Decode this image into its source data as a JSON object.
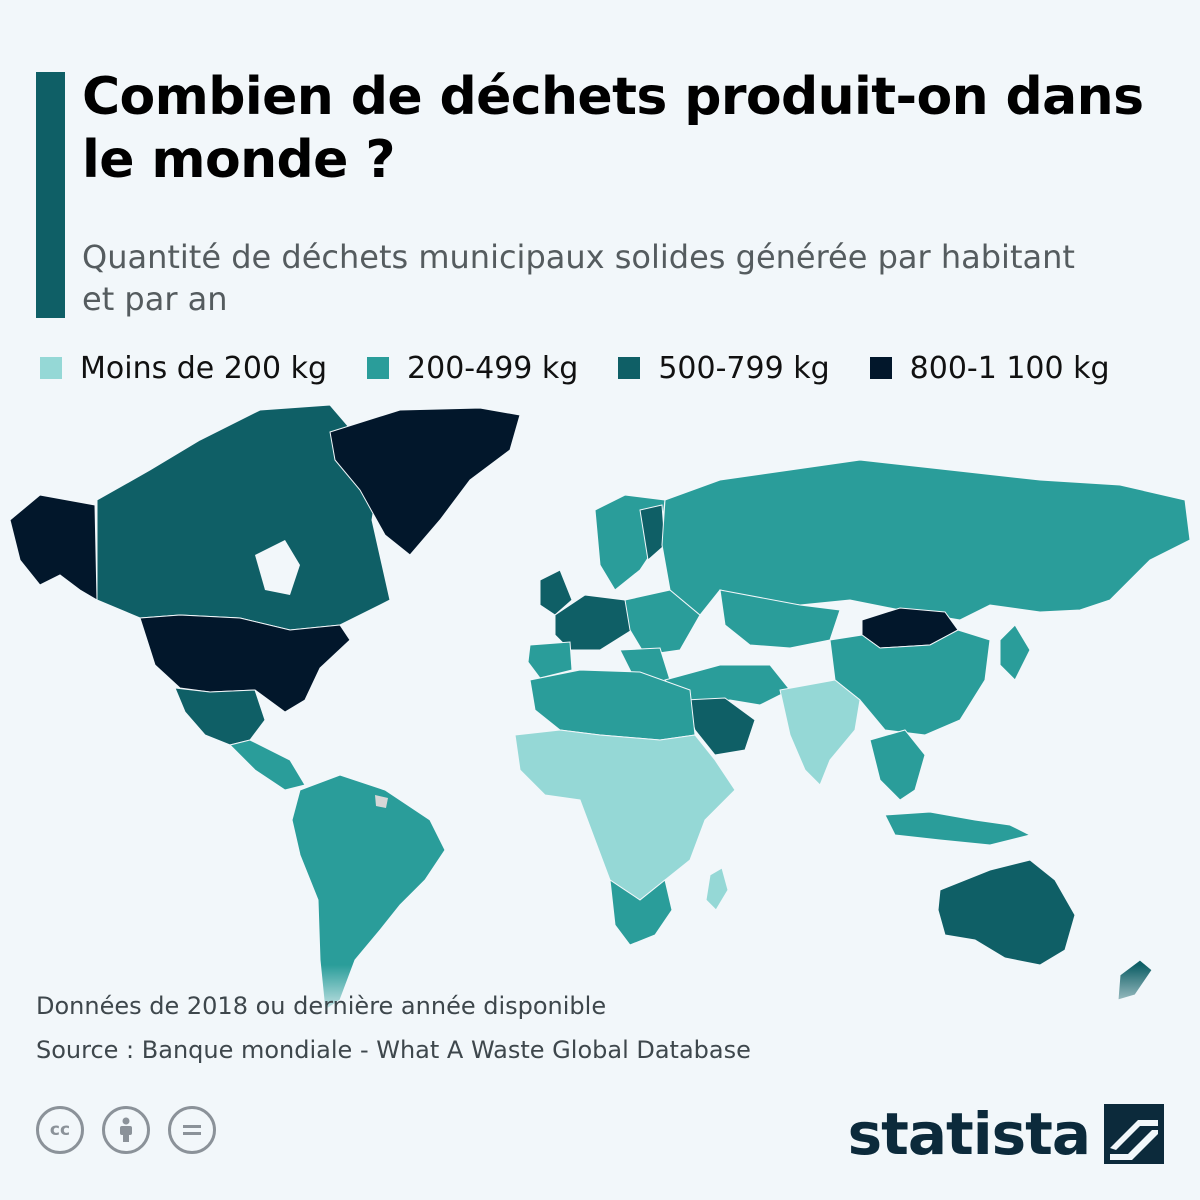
{
  "title": "Combien de déchets produit-on dans le monde ?",
  "subtitle": "Quantité de déchets municipaux solides générée par habitant et par an",
  "legend": [
    {
      "label": "Moins de 200 kg",
      "color": "#95d8d6"
    },
    {
      "label": "200-499 kg",
      "color": "#2a9d9a"
    },
    {
      "label": "500-799 kg",
      "color": "#0f5f66"
    },
    {
      "label": "800-1 100 kg",
      "color": "#02172b"
    }
  ],
  "note": "Données de 2018 ou dernière année disponible",
  "source": "Source : Banque mondiale - What A Waste Global Database",
  "brand": "statista",
  "license_icons": [
    "cc-icon",
    "attribution-icon",
    "no-derivatives-icon"
  ],
  "map": {
    "regions": [
      {
        "name": "Alaska",
        "class": "800-1 100 kg"
      },
      {
        "name": "Canada",
        "class": "500-799 kg"
      },
      {
        "name": "États-Unis",
        "class": "800-1 100 kg"
      },
      {
        "name": "Groenland",
        "class": "800-1 100 kg"
      },
      {
        "name": "Mexique",
        "class": "500-799 kg"
      },
      {
        "name": "Amérique centrale",
        "class": "200-499 kg"
      },
      {
        "name": "Amérique du Sud",
        "class": "200-499 kg"
      },
      {
        "name": "Europe de l'Ouest",
        "class": "500-799 kg"
      },
      {
        "name": "Europe de l'Est",
        "class": "200-499 kg"
      },
      {
        "name": "Russie",
        "class": "200-499 kg"
      },
      {
        "name": "Mongolie",
        "class": "800-1 100 kg"
      },
      {
        "name": "Chine",
        "class": "200-499 kg"
      },
      {
        "name": "Inde",
        "class": "Moins de 200 kg"
      },
      {
        "name": "Arabie saoudite",
        "class": "500-799 kg"
      },
      {
        "name": "Afrique du Nord",
        "class": "200-499 kg"
      },
      {
        "name": "Afrique subsaharienne",
        "class": "Moins de 200 kg"
      },
      {
        "name": "Afrique australe",
        "class": "200-499 kg"
      },
      {
        "name": "Asie du Sud-Est",
        "class": "200-499 kg"
      },
      {
        "name": "Australie",
        "class": "500-799 kg"
      },
      {
        "name": "Nouvelle-Zélande",
        "class": "500-799 kg"
      }
    ]
  }
}
